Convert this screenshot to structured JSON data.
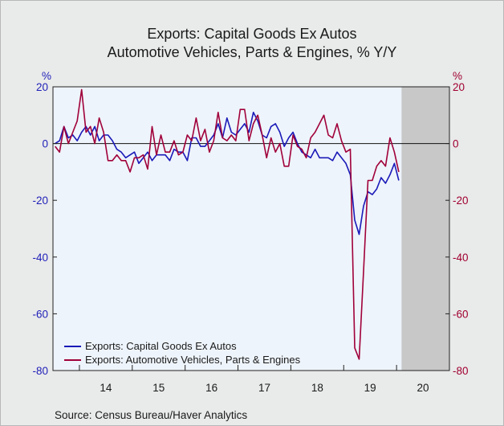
{
  "chart_data": {
    "type": "line",
    "title": "Exports: Capital Goods Ex Autos",
    "subtitle": "Automotive Vehicles, Parts & Engines, % Y/Y",
    "left_axis_unit": "%",
    "right_axis_unit": "%",
    "ylim": [
      -80,
      20
    ],
    "left_ticks": [
      "20",
      "0",
      "-20",
      "-40",
      "-60",
      "-80"
    ],
    "right_ticks": [
      "20",
      "0",
      "-20",
      "-40",
      "-60",
      "-80"
    ],
    "x_tick_labels": [
      "14",
      "15",
      "16",
      "17",
      "18",
      "19",
      "20"
    ],
    "xlim": [
      "2013-07",
      "2020-12"
    ],
    "grid": false,
    "legend_position": "bottom-left",
    "shaded_region": {
      "start": "2020-02",
      "end": "2020-12",
      "color": "#c8c8c8"
    },
    "series": [
      {
        "name": "Exports: Capital Goods Ex Autos",
        "color": "#1a1ab8",
        "start": "2013-07",
        "values": [
          0,
          1,
          6,
          2,
          3,
          1,
          4,
          6,
          3,
          6,
          1,
          3,
          3,
          1,
          -2,
          -3,
          -5,
          -4,
          -3,
          -7,
          -5,
          -3,
          -6,
          -4,
          -4,
          -4,
          -6,
          -2,
          -3,
          -3,
          -6,
          2,
          2,
          -1,
          -1,
          1,
          3,
          7,
          2,
          9,
          4,
          3,
          5,
          7,
          4,
          11,
          8,
          3,
          2,
          6,
          7,
          4,
          -1,
          2,
          4,
          0,
          -3,
          -4,
          -5,
          -2,
          -5,
          -5,
          -5,
          -6,
          -3,
          -5,
          -7,
          -11,
          -27,
          -32,
          -22,
          -17,
          -18,
          -16,
          -12,
          -14,
          -11,
          -7,
          -13
        ]
      },
      {
        "name": "Exports: Automotive Vehicles, Parts & Engines",
        "color": "#a0003a",
        "start": "2013-07",
        "values": [
          -1,
          -3,
          6,
          0,
          4,
          8,
          19,
          4,
          6,
          0,
          9,
          4,
          -6,
          -6,
          -4,
          -6,
          -6,
          -10,
          -5,
          -5,
          -4,
          -9,
          6,
          -4,
          3,
          -3,
          -3,
          1,
          -4,
          -3,
          3,
          1,
          9,
          1,
          5,
          -3,
          1,
          11,
          2,
          1,
          3,
          1,
          12,
          12,
          1,
          7,
          10,
          3,
          -5,
          2,
          -3,
          0,
          -8,
          -8,
          3,
          -1,
          -2,
          -5,
          2,
          4,
          7,
          10,
          3,
          2,
          7,
          1,
          -3,
          -2,
          -72,
          -76,
          -45,
          -13,
          -13,
          -8,
          -6,
          -8,
          2,
          -3,
          -10
        ]
      }
    ]
  },
  "source": "Source:   Census Bureau/Haver Analytics"
}
